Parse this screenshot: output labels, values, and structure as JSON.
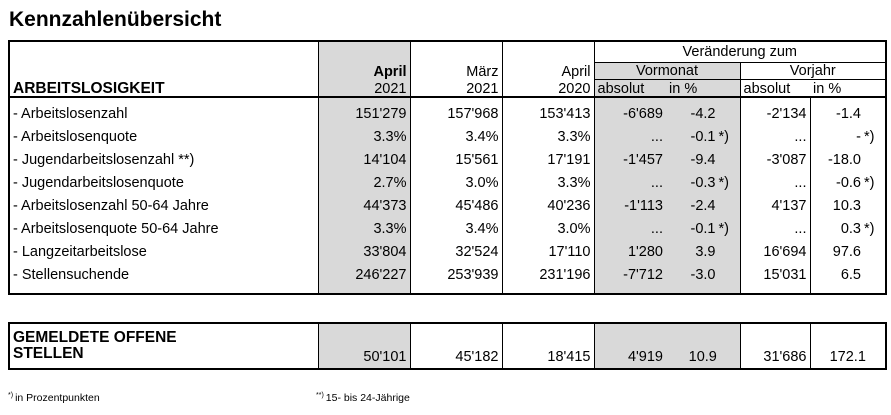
{
  "title": "Kennzahlenübersicht",
  "header": {
    "change_label": "Veränderung zum",
    "prev_month": "Vormonat",
    "prev_year": "Vorjahr",
    "section": "ARBEITSLOSIGKEIT",
    "col1_month": "April",
    "col1_year": "2021",
    "col2_month": "März",
    "col2_year": "2021",
    "col3_month": "April",
    "col3_year": "2020",
    "absolut": "absolut",
    "in_pct": "in %"
  },
  "rows": [
    {
      "label": "- Arbeitslosenzahl",
      "apr21": "151'279",
      "mar21": "157'968",
      "apr20": "153'413",
      "m_abs": "-6'689",
      "m_pct": "-4.2",
      "m_star": "",
      "y_abs": "-2'134",
      "y_pct": "-1.4",
      "y_star": ""
    },
    {
      "label": "- Arbeitslosenquote",
      "apr21": "3.3%",
      "mar21": "3.4%",
      "apr20": "3.3%",
      "m_abs": "...",
      "m_pct": "-0.1",
      "m_star": "*)",
      "y_abs": "...",
      "y_pct": "-",
      "y_star": "*)"
    },
    {
      "label": "- Jugendarbeitslosenzahl **)",
      "apr21": "14'104",
      "mar21": "15'561",
      "apr20": "17'191",
      "m_abs": "-1'457",
      "m_pct": "-9.4",
      "m_star": "",
      "y_abs": "-3'087",
      "y_pct": "-18.0",
      "y_star": ""
    },
    {
      "label": "- Jugendarbeitslosenquote",
      "apr21": "2.7%",
      "mar21": "3.0%",
      "apr20": "3.3%",
      "m_abs": "...",
      "m_pct": "-0.3",
      "m_star": "*)",
      "y_abs": "...",
      "y_pct": "-0.6",
      "y_star": "*)"
    },
    {
      "label": "- Arbeitslosenzahl 50-64 Jahre",
      "apr21": "44'373",
      "mar21": "45'486",
      "apr20": "40'236",
      "m_abs": "-1'113",
      "m_pct": "-2.4",
      "m_star": "",
      "y_abs": "4'137",
      "y_pct": "10.3",
      "y_star": ""
    },
    {
      "label": "- Arbeitslosenquote 50-64 Jahre",
      "apr21": "3.3%",
      "mar21": "3.4%",
      "apr20": "3.0%",
      "m_abs": "...",
      "m_pct": "-0.1",
      "m_star": "*)",
      "y_abs": "...",
      "y_pct": "0.3",
      "y_star": "*)"
    },
    {
      "label": "- Langzeitarbeitslose",
      "apr21": "33'804",
      "mar21": "32'524",
      "apr20": "17'110",
      "m_abs": "1'280",
      "m_pct": "3.9",
      "m_star": "",
      "y_abs": "16'694",
      "y_pct": "97.6",
      "y_star": ""
    },
    {
      "label": "- Stellensuchende",
      "apr21": "246'227",
      "mar21": "253'939",
      "apr20": "231'196",
      "m_abs": "-7'712",
      "m_pct": "-3.0",
      "m_star": "",
      "y_abs": "15'031",
      "y_pct": "6.5",
      "y_star": ""
    }
  ],
  "vacancies": {
    "label_line1": "GEMELDETE OFFENE",
    "label_line2": "STELLEN",
    "apr21": "50'101",
    "mar21": "45'182",
    "apr20": "18'415",
    "m_abs": "4'919",
    "m_pct": "10.9",
    "y_abs": "31'686",
    "y_pct": "172.1"
  },
  "footnotes": {
    "star_mark": "*)",
    "star_text": "in Prozentpunkten",
    "dstar_mark": "**)",
    "dstar_text": "15- bis 24-Jährige"
  }
}
